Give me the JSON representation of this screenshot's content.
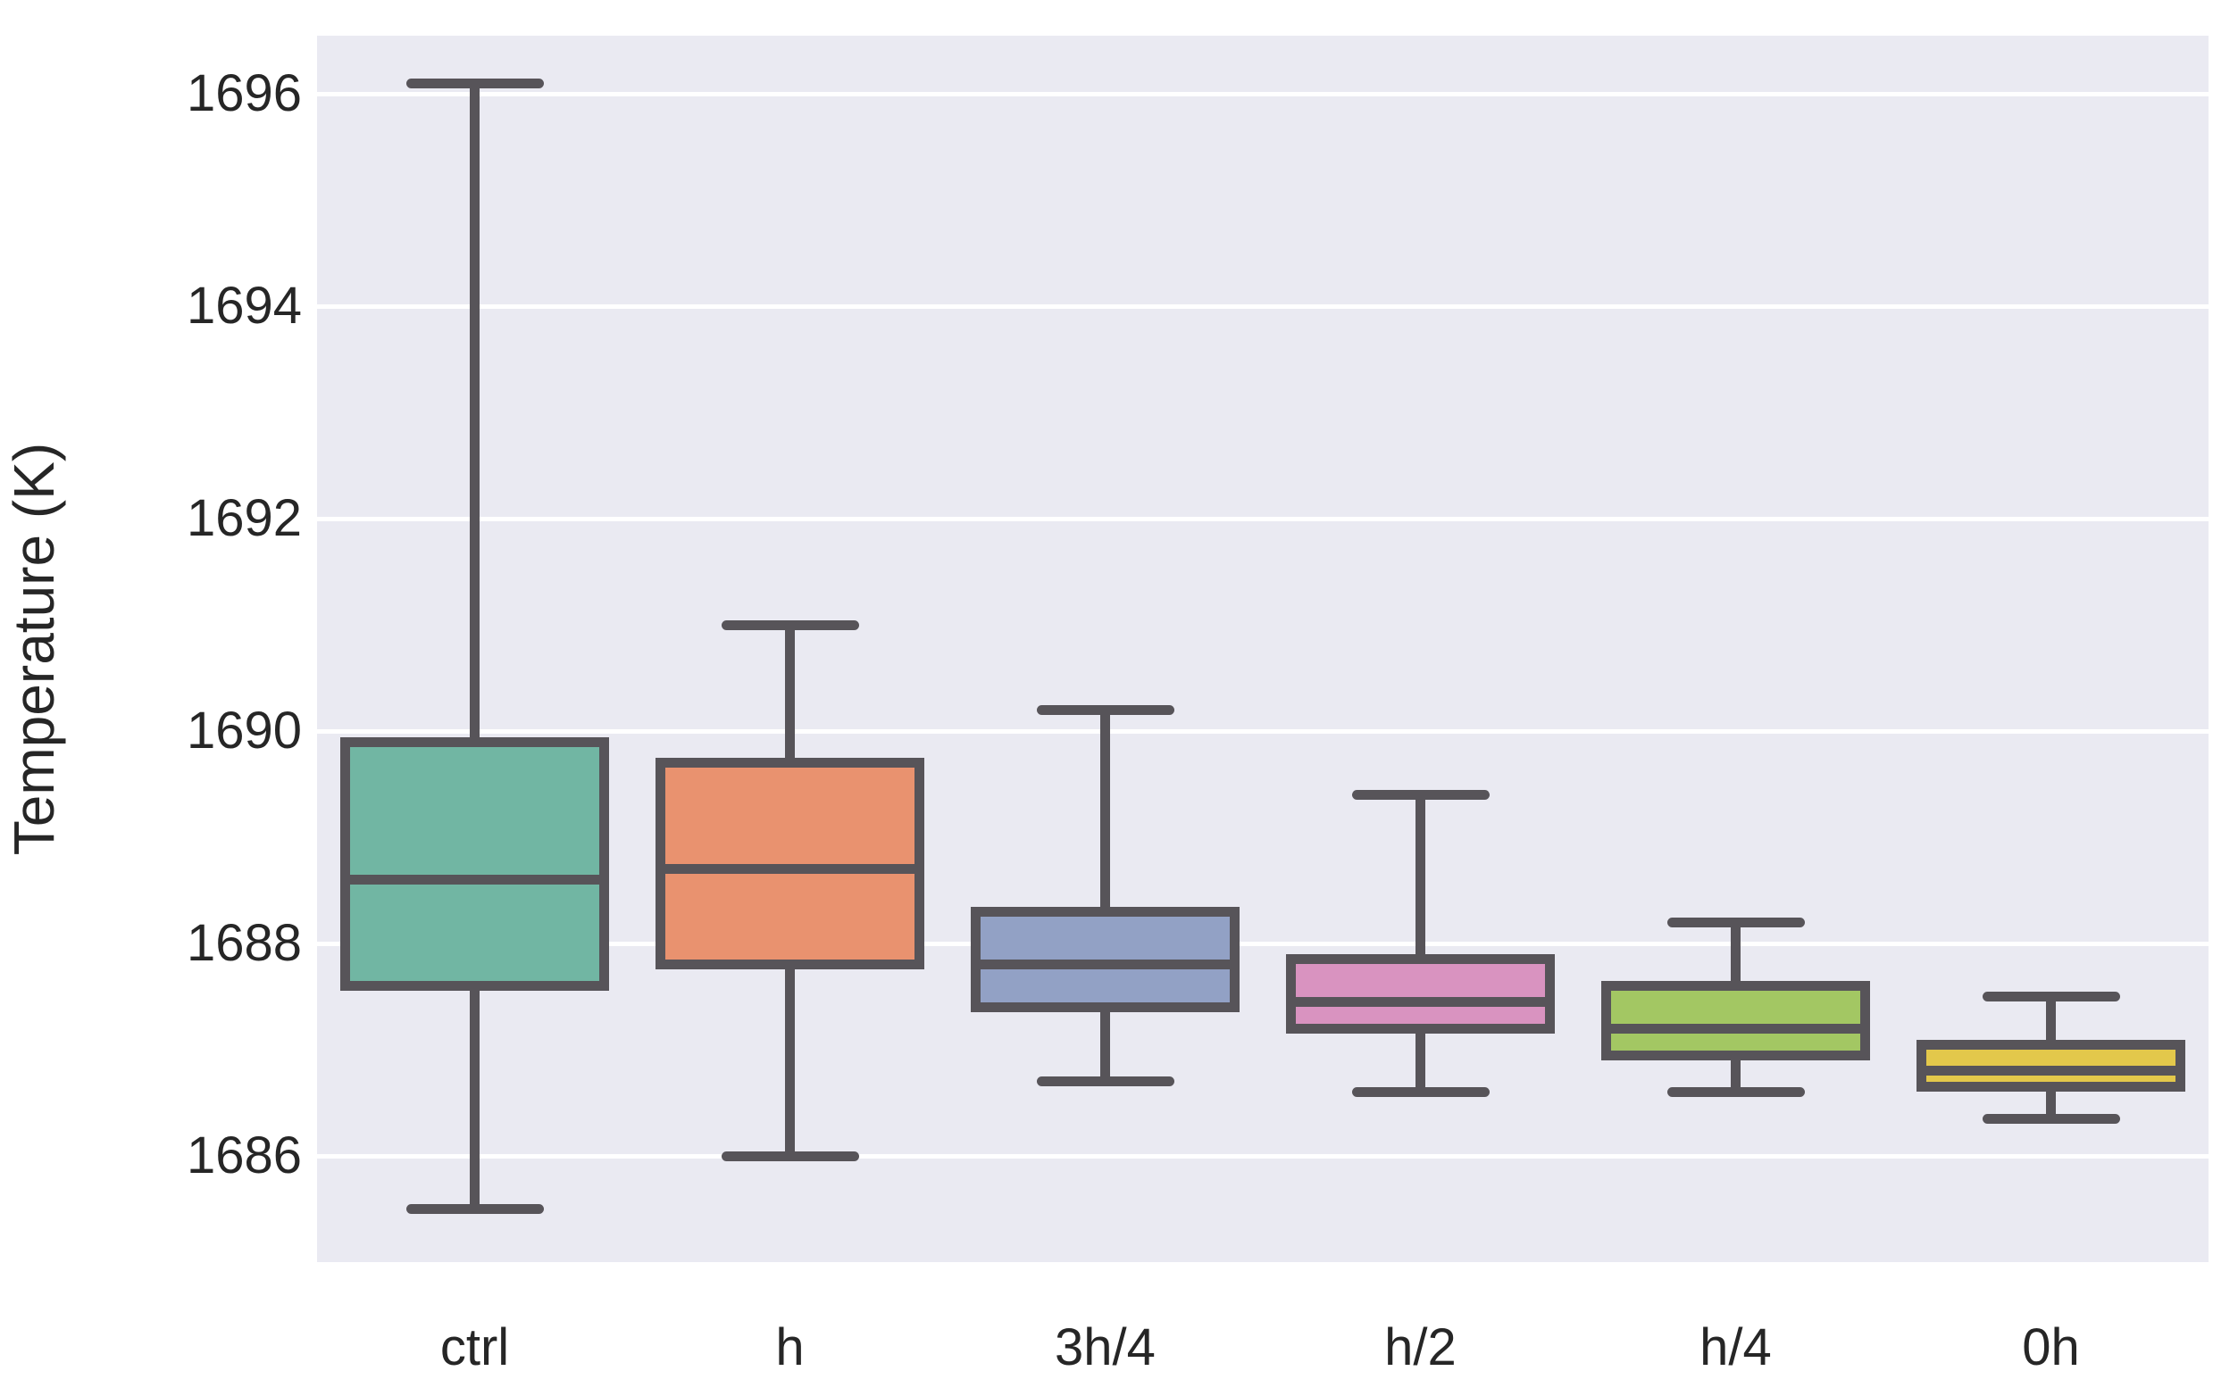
{
  "chart_data": {
    "type": "box",
    "title": "",
    "xlabel": "",
    "ylabel": "Temperature (K)",
    "categories": [
      "ctrl",
      "h",
      "3h/4",
      "h/2",
      "h/4",
      "0h"
    ],
    "yticks": [
      1696,
      1694,
      1692,
      1690,
      1688,
      1686
    ],
    "ylim": [
      1685.0,
      1696.55
    ],
    "grid": true,
    "legend": false,
    "series": [
      {
        "label": "ctrl",
        "color": "#71b6a3",
        "whisker_low": 1685.5,
        "q1": 1687.6,
        "median": 1688.6,
        "q3": 1689.9,
        "whisker_high": 1696.1
      },
      {
        "label": "h",
        "color": "#e9926f",
        "whisker_low": 1686.0,
        "q1": 1687.8,
        "median": 1688.7,
        "q3": 1689.7,
        "whisker_high": 1691.0
      },
      {
        "label": "3h/4",
        "color": "#92a1c5",
        "whisker_low": 1686.7,
        "q1": 1687.4,
        "median": 1687.8,
        "q3": 1688.3,
        "whisker_high": 1690.2
      },
      {
        "label": "h/2",
        "color": "#d993c0",
        "whisker_low": 1686.6,
        "q1": 1687.2,
        "median": 1687.45,
        "q3": 1687.85,
        "whisker_high": 1689.4
      },
      {
        "label": "h/4",
        "color": "#a3c763",
        "whisker_low": 1686.6,
        "q1": 1686.95,
        "median": 1687.2,
        "q3": 1687.6,
        "whisker_high": 1688.2
      },
      {
        "label": "0h",
        "color": "#e3c84b",
        "whisker_low": 1686.35,
        "q1": 1686.65,
        "median": 1686.8,
        "q3": 1687.05,
        "whisker_high": 1687.5
      }
    ],
    "styles": {
      "plot_background": "#eaeaf2",
      "gridline_color": "#ffffff",
      "line_color": "#575459",
      "text_color": "#262626"
    }
  }
}
